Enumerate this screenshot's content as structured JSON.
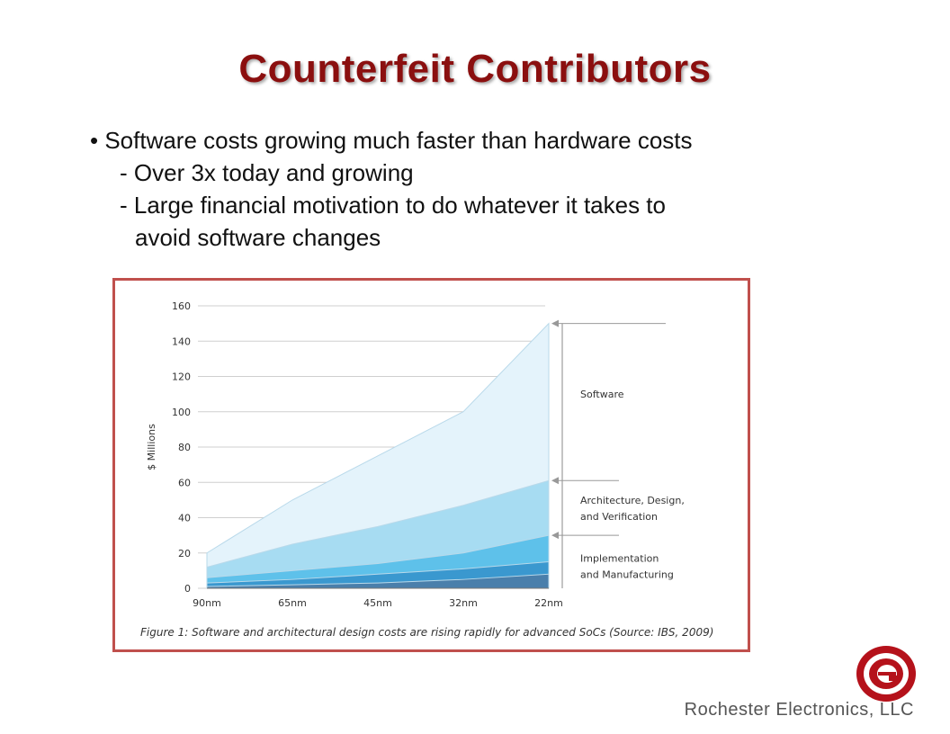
{
  "slide": {
    "title": "Counterfeit Contributors",
    "bullets": [
      "• Software costs growing much faster than hardware costs",
      "- Over 3x today and growing",
      "- Large financial motivation to do whatever it takes to",
      "avoid software changes"
    ],
    "company": "Rochester Electronics, LLC",
    "logo_icon": "rochester-e-logo-icon",
    "accent_color": "#8b0f0f"
  },
  "chart_data": {
    "type": "area",
    "x": [
      "90nm",
      "65nm",
      "45nm",
      "32nm",
      "22nm"
    ],
    "ylabel": "$ Millions",
    "ylim": [
      0,
      160
    ],
    "yticks": [
      0,
      20,
      40,
      60,
      80,
      100,
      120,
      140,
      160
    ],
    "grid": true,
    "caption": "Figure 1: Software and architectural design costs are rising rapidly for advanced SoCs (Source: IBS, 2009)",
    "stacked_totals": [
      {
        "name": "Software",
        "values": [
          20,
          50,
          75,
          100,
          150
        ],
        "color": "#e4f3fb"
      },
      {
        "name": "Architecture, Design, and Verification",
        "values": [
          12,
          25,
          35,
          47,
          61
        ],
        "color": "#a7dcf2"
      },
      {
        "name": "Implementation and Manufacturing",
        "values": [
          6,
          10,
          14,
          20,
          30
        ],
        "color": "#5ec1ea"
      },
      {
        "name": "",
        "values": [
          3,
          5,
          8,
          11,
          15
        ],
        "color": "#3a98cf"
      },
      {
        "name": "",
        "values": [
          1,
          2,
          3,
          5,
          8
        ],
        "color": "#4a7fab"
      }
    ],
    "annotations": [
      {
        "lines": [
          "Software"
        ],
        "value": 150
      },
      {
        "lines": [
          "Architecture, Design,",
          "and Verification"
        ],
        "value": 61
      },
      {
        "lines": [
          "Implementation",
          "and Manufacturing"
        ],
        "value": 30
      }
    ]
  }
}
